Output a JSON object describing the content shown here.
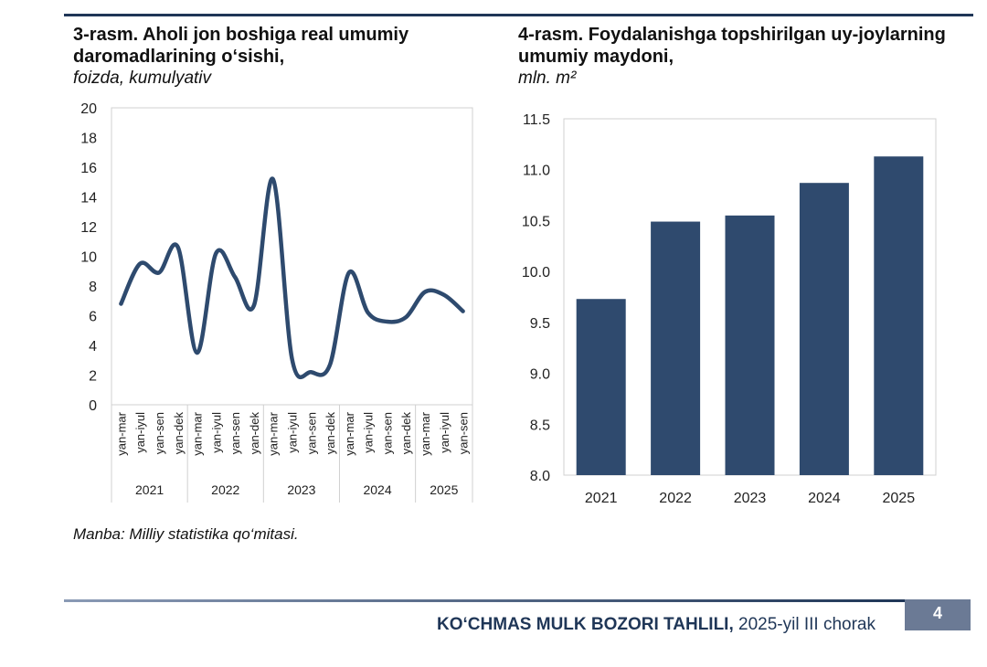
{
  "header": {},
  "chart_data": [
    {
      "type": "line",
      "title": "3-rasm. Aholi jon boshiga real umumiy daromadlarining o‘sishi,",
      "subtitle": "foizda, kumulyativ",
      "ylim": [
        0,
        20
      ],
      "yticks": [
        0,
        2,
        4,
        6,
        8,
        10,
        12,
        14,
        16,
        18,
        20
      ],
      "categories": [
        "yan-mar",
        "yan-iyul",
        "yan-sen",
        "yan-dek",
        "yan-mar",
        "yan-iyul",
        "yan-sen",
        "yan-dek",
        "yan-mar",
        "yan-iyul",
        "yan-sen",
        "yan-dek",
        "yan-mar",
        "yan-iyul",
        "yan-sen",
        "yan-dek",
        "yan-mar",
        "yan-iyul",
        "yan-sen"
      ],
      "groups": [
        {
          "label": "2021",
          "count": 4
        },
        {
          "label": "2022",
          "count": 4
        },
        {
          "label": "2023",
          "count": 4
        },
        {
          "label": "2024",
          "count": 4
        },
        {
          "label": "2025",
          "count": 3
        }
      ],
      "values": [
        6.8,
        9.5,
        8.9,
        10.6,
        3.5,
        10.2,
        8.6,
        6.7,
        15.2,
        3.1,
        2.2,
        2.7,
        8.9,
        6.2,
        5.6,
        5.9,
        7.6,
        7.4,
        6.3
      ],
      "color": "#2e4a6e",
      "grid": false,
      "legend": "none"
    },
    {
      "type": "bar",
      "title": "4-rasm. Foydalanishga topshirilgan uy-joylarning umumiy maydoni,",
      "subtitle": "mln. m²",
      "ylim": [
        8.0,
        11.5
      ],
      "yticks": [
        "8.0",
        "8.5",
        "9.0",
        "9.5",
        "10.0",
        "10.5",
        "11.0",
        "11.5"
      ],
      "categories": [
        "2021",
        "2022",
        "2023",
        "2024",
        "2025"
      ],
      "values": [
        9.73,
        10.49,
        10.55,
        10.87,
        11.13
      ],
      "color": "#2f4a6e",
      "grid": false,
      "legend": "none"
    }
  ],
  "source": "Manba: Milliy statistika qo‘mitasi.",
  "footer": {
    "bold": "KO‘CHMAS MULK BOZORI TAHLILI,",
    "rest": " 2025-yil III chorak",
    "page": "4"
  }
}
